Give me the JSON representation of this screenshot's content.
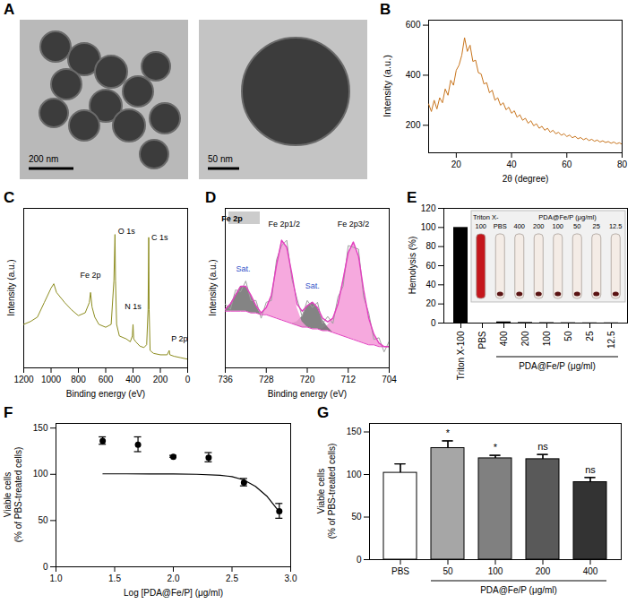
{
  "images": {
    "panel": "A",
    "items": [
      {
        "scale_bar": "200 nm"
      },
      {
        "scale_bar": "50 nm"
      }
    ]
  },
  "chart_data": [
    {
      "panel": "B",
      "type": "line",
      "color": "#c8741c",
      "x": [
        10,
        11,
        12,
        13,
        14,
        15,
        16,
        17,
        18,
        19,
        20,
        21,
        22,
        23,
        24,
        25,
        26,
        27,
        28,
        29,
        30,
        31,
        32,
        33,
        34,
        35,
        36,
        37,
        38,
        39,
        40,
        41,
        42,
        43,
        44,
        45,
        46,
        47,
        48,
        49,
        50,
        51,
        52,
        53,
        54,
        55,
        56,
        57,
        58,
        59,
        60,
        61,
        62,
        63,
        64,
        65,
        66,
        67,
        68,
        69,
        70,
        71,
        72,
        73,
        74,
        75,
        76,
        77,
        78,
        79,
        80
      ],
      "values": [
        285,
        255,
        300,
        265,
        310,
        290,
        345,
        320,
        380,
        360,
        420,
        440,
        480,
        550,
        495,
        520,
        455,
        460,
        410,
        405,
        365,
        370,
        330,
        340,
        300,
        310,
        280,
        290,
        262,
        272,
        248,
        258,
        232,
        242,
        220,
        228,
        208,
        218,
        198,
        206,
        188,
        196,
        180,
        188,
        172,
        180,
        166,
        172,
        160,
        166,
        155,
        161,
        150,
        156,
        146,
        151,
        142,
        148,
        139,
        144,
        136,
        141,
        133,
        138,
        131,
        135,
        128,
        133,
        126,
        130,
        124
      ],
      "xlim": [
        10,
        80
      ],
      "xticks": [
        20,
        40,
        60,
        80
      ],
      "ylim": [
        90,
        620
      ],
      "yticks": [
        200,
        400,
        600
      ],
      "xlabel": "2θ (degree)",
      "ylabel": "Intensity (a.u.)"
    },
    {
      "panel": "C",
      "type": "line",
      "color": "#8c8c1e",
      "x": [
        1200,
        1150,
        1100,
        1050,
        1000,
        980,
        960,
        900,
        850,
        800,
        750,
        720,
        711,
        700,
        680,
        650,
        600,
        560,
        540,
        532,
        528,
        520,
        500,
        450,
        420,
        405,
        400,
        395,
        380,
        350,
        320,
        300,
        290,
        285,
        282,
        275,
        250,
        200,
        150,
        135,
        130,
        100,
        50,
        0
      ],
      "values": [
        30,
        32,
        35,
        45,
        55,
        58,
        52,
        45,
        40,
        36,
        38,
        45,
        52,
        42,
        35,
        30,
        28,
        30,
        60,
        92,
        60,
        30,
        22,
        20,
        18,
        22,
        30,
        20,
        18,
        15,
        14,
        16,
        40,
        90,
        40,
        12,
        10,
        9,
        9,
        12,
        9,
        8,
        7,
        6
      ],
      "xlim": [
        1200,
        0
      ],
      "xticks": [
        1200,
        1000,
        800,
        600,
        400,
        200,
        0
      ],
      "ylim": [
        0,
        110
      ],
      "tick_labels": "x",
      "xlabel": "Binding energy (eV)",
      "ylabel": "Intensity (a.u.)",
      "annotations": [
        {
          "text": "O 1s",
          "x": 447,
          "y": 94
        },
        {
          "text": "C 1s",
          "x": 205,
          "y": 90
        },
        {
          "text": "N 1s",
          "x": 400,
          "y": 42
        },
        {
          "text": "Fe 2p",
          "x": 711,
          "y": 64
        },
        {
          "text": "P 2p",
          "x": 60,
          "y": 20
        }
      ]
    },
    {
      "panel": "D",
      "type": "line",
      "title": "Fe 2p",
      "color": "#e23fbf",
      "x": [
        704,
        705,
        706,
        707,
        708,
        709,
        710,
        711,
        712,
        713,
        714,
        715,
        716,
        717,
        718,
        719,
        720,
        721,
        722,
        723,
        724,
        725,
        726,
        727,
        728,
        729,
        730,
        731,
        732,
        733,
        734,
        735,
        736
      ],
      "baseline": [
        12,
        12,
        12,
        13,
        13,
        14,
        15,
        16,
        17,
        18,
        19,
        20,
        21,
        21,
        22,
        22,
        23,
        23,
        24,
        25,
        26,
        27,
        28,
        29,
        30,
        30,
        31,
        31,
        32,
        32,
        32,
        32,
        32
      ],
      "series": [
        {
          "type": "area",
          "color": "#f49ad8",
          "values": [
            0,
            0,
            2,
            6,
            15,
            30,
            48,
            55,
            48,
            32,
            17,
            8,
            3,
            1,
            0,
            0,
            0,
            0,
            0,
            0,
            0,
            0,
            0,
            0,
            0,
            0,
            0,
            0,
            0,
            0,
            0,
            0,
            0
          ]
        },
        {
          "type": "area",
          "color": "#6e6e6e",
          "values": [
            0,
            0,
            0,
            0,
            0,
            0,
            0,
            0,
            0,
            0,
            0,
            0,
            2,
            6,
            12,
            15,
            12,
            6,
            2,
            0,
            0,
            0,
            0,
            0,
            0,
            0,
            0,
            0,
            0,
            0,
            0,
            0,
            0
          ]
        },
        {
          "type": "area",
          "color": "#f49ad8",
          "values": [
            0,
            0,
            0,
            0,
            0,
            0,
            0,
            0,
            0,
            0,
            0,
            0,
            0,
            0,
            0,
            0,
            0,
            3,
            10,
            28,
            42,
            45,
            30,
            12,
            4,
            1,
            0,
            0,
            0,
            0,
            0,
            0,
            0
          ]
        },
        {
          "type": "area",
          "color": "#6e6e6e",
          "values": [
            0,
            0,
            0,
            0,
            0,
            0,
            0,
            0,
            0,
            0,
            0,
            0,
            0,
            0,
            0,
            0,
            0,
            0,
            0,
            0,
            0,
            0,
            0,
            0,
            0,
            0,
            4,
            10,
            14,
            14,
            9,
            4,
            1
          ]
        },
        {
          "type": "line",
          "color": "#a0a0a0",
          "values": [
            15,
            9,
            17,
            16,
            31,
            40,
            67,
            68,
            69,
            46,
            40,
            25,
            29,
            25,
            37,
            34,
            38,
            29,
            39,
            50,
            72,
            69,
            61,
            38,
            37,
            28,
            38,
            38,
            49,
            43,
            44,
            33,
            36
          ]
        }
      ],
      "xlim": [
        736,
        704
      ],
      "xticks": [
        736,
        728,
        720,
        712,
        704
      ],
      "ylim": [
        0,
        90
      ],
      "tick_labels": "x",
      "xlabel": "Binding energy (eV)",
      "ylabel": "Intensity (a.u.)",
      "annotations": [
        {
          "text": "Fe 2p1/2",
          "x": 724.5,
          "y": 81
        },
        {
          "text": "Fe 2p3/2",
          "x": 711,
          "y": 81
        },
        {
          "text": "Sat.",
          "x": 732.5,
          "y": 56,
          "color": "#3050c8"
        },
        {
          "text": "Sat.",
          "x": 719,
          "y": 46,
          "color": "#3050c8"
        }
      ]
    },
    {
      "panel": "E",
      "type": "bar",
      "color": "#000000",
      "categories": [
        "Triton X-100",
        "PBS",
        "400",
        "200",
        "100",
        "50",
        "25",
        "12.5"
      ],
      "values": [
        100,
        0,
        1.2,
        0.6,
        0.4,
        0.3,
        0.2,
        0.2
      ],
      "ylim": [
        0,
        120
      ],
      "yticks": [
        0,
        20,
        40,
        60,
        80,
        100,
        120
      ],
      "ylabel": "Hemolysis (%)",
      "group_label": {
        "text": "PDA@Fe/P (μg/ml)",
        "from": "400",
        "to": "12.5"
      },
      "inset": {
        "labels": [
          "Triton X-100",
          "PBS",
          "400",
          "200",
          "100",
          "50",
          "25",
          "12.5"
        ],
        "group_label": {
          "text": "PDA@Fe/P (μg/ml)",
          "from": "400",
          "to": "12.5"
        }
      }
    },
    {
      "panel": "F",
      "type": "scatter",
      "color": "#000000",
      "x": [
        1.398,
        1.699,
        2.0,
        2.301,
        2.602,
        2.903
      ],
      "values": [
        136,
        132,
        119,
        118,
        91,
        60
      ],
      "errors": [
        4,
        8,
        1,
        5,
        4,
        8
      ],
      "fit": {
        "x": [
          1.4,
          1.6,
          1.8,
          2.0,
          2.2,
          2.4,
          2.5,
          2.6,
          2.7,
          2.8,
          2.9
        ],
        "values": [
          100.5,
          100.5,
          100.4,
          100.3,
          100,
          99,
          97.5,
          94,
          87,
          76,
          60
        ]
      },
      "xlim": [
        1.0,
        3.0
      ],
      "xticks": [
        {
          "value": 1,
          "label": "1.0"
        },
        {
          "value": 1.5,
          "label": "1.5"
        },
        {
          "value": 2,
          "label": "2.0"
        },
        {
          "value": 2.5,
          "label": "2.5"
        },
        {
          "value": 3,
          "label": "3.0"
        }
      ],
      "ylim": [
        0,
        155
      ],
      "yticks": [
        0,
        50,
        100,
        150
      ],
      "xlabel": "Log [PDA@Fe/P] (μg/ml)",
      "ylabel": "Viable cells (% of PBS-treated cells)"
    },
    {
      "panel": "G",
      "type": "bar",
      "categories": [
        "PBS",
        "50",
        "100",
        "200",
        "400"
      ],
      "values": [
        102,
        131,
        119,
        118,
        91
      ],
      "errors": [
        10,
        8,
        3,
        5,
        5
      ],
      "colors": [
        "#ffffff",
        "#a6a6a6",
        "#808080",
        "#595959",
        "#333333"
      ],
      "significance": [
        null,
        "*",
        "*",
        "ns",
        "ns"
      ],
      "ylim": [
        0,
        160
      ],
      "yticks": [
        0,
        50,
        100,
        150
      ],
      "ylabel": "Viable cells (% of PBS-treated cells)",
      "group_label": {
        "text": "PDA@Fe/P (μg/ml)",
        "from": "50",
        "to": "400"
      }
    }
  ]
}
